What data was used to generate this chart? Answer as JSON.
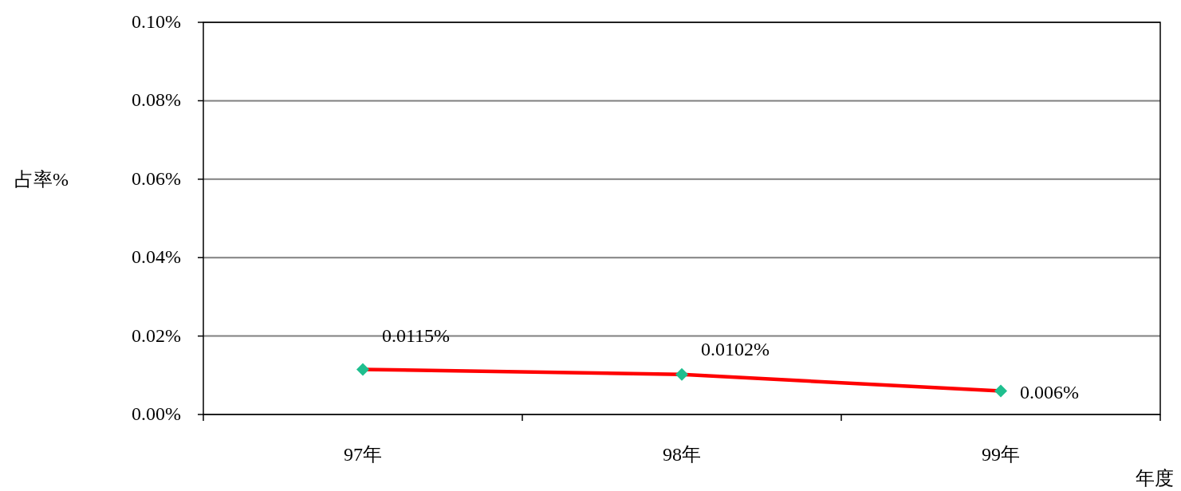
{
  "chart_data": {
    "type": "line",
    "ylabel": "占率%",
    "xlabel": "年度",
    "categories": [
      "97年",
      "98年",
      "99年"
    ],
    "series": [
      {
        "color": "#ff0000",
        "colors": [
          "#1fbf8f",
          "#1fbf8f",
          "#1fbf8f"
        ],
        "values": [
          0.0115,
          0.0102,
          0.006
        ],
        "value_labels": [
          "0.0115%",
          "0.0102%",
          "0.006%"
        ]
      }
    ],
    "ylim": [
      0,
      0.1
    ],
    "yticks": [
      {
        "value": 0,
        "label": "0.00%"
      },
      {
        "value": 0.02,
        "label": "0.02%"
      },
      {
        "value": 0.04,
        "label": "0.04%"
      },
      {
        "value": 0.06,
        "label": "0.06%"
      },
      {
        "value": 0.08,
        "label": "0.08%"
      },
      {
        "value": 0.1,
        "label": "0.10%"
      }
    ],
    "grid": "y",
    "marker": "diamond",
    "line_style": "solid"
  }
}
